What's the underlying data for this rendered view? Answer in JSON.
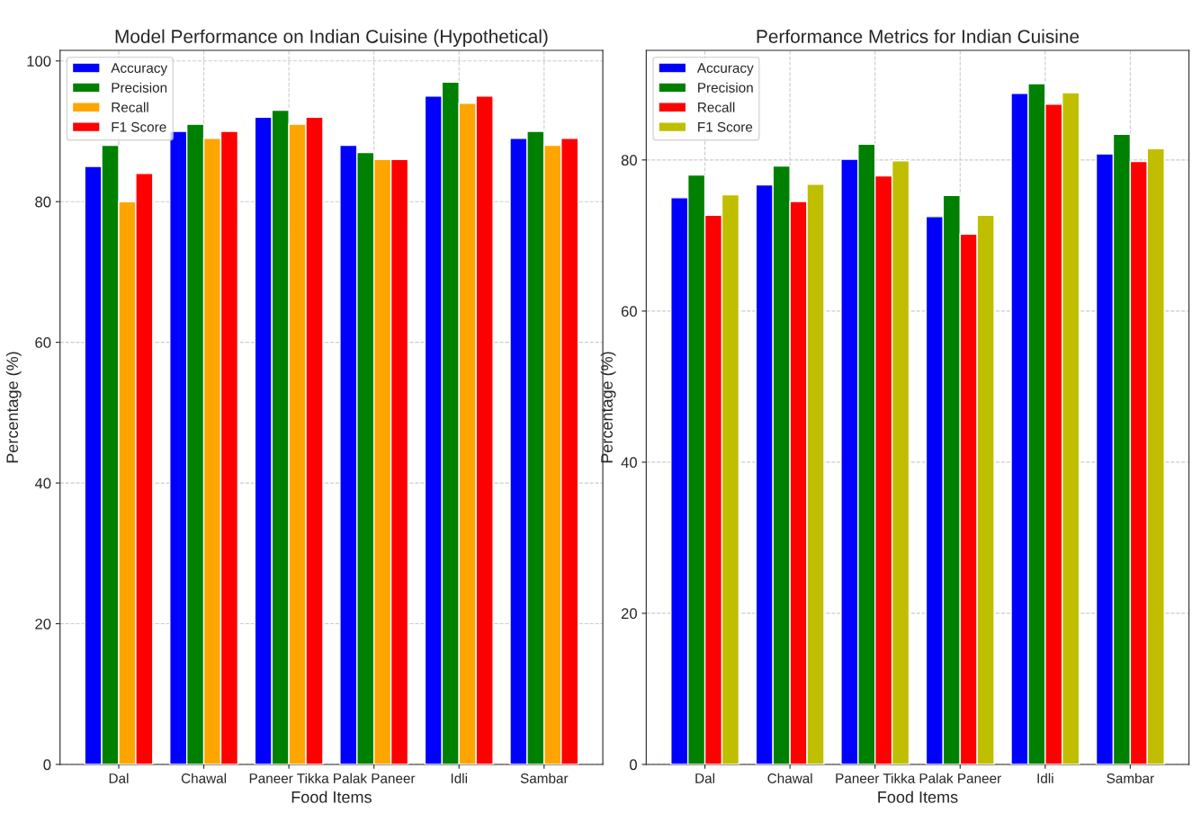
{
  "chart_data": [
    {
      "type": "bar",
      "title": "Model Performance on Indian Cuisine (Hypothetical)",
      "xlabel": "Food Items",
      "ylabel": "Percentage (%)",
      "categories": [
        "Dal",
        "Chawal",
        "Paneer Tikka",
        "Palak Paneer",
        "Idli",
        "Sambar"
      ],
      "series": [
        {
          "name": "Accuracy",
          "color": "#0000ff",
          "values": [
            85,
            90,
            92,
            88,
            95,
            89
          ]
        },
        {
          "name": "Precision",
          "color": "#008000",
          "values": [
            88,
            91,
            93,
            87,
            97,
            90
          ]
        },
        {
          "name": "Recall",
          "color": "#ffa500",
          "values": [
            80,
            89,
            91,
            86,
            94,
            88
          ]
        },
        {
          "name": "F1 Score",
          "color": "#ff0000",
          "values": [
            84,
            90,
            92,
            86,
            95,
            89
          ]
        }
      ],
      "ylim": [
        0,
        101.5
      ],
      "yticks": [
        0,
        20,
        40,
        60,
        80,
        100
      ],
      "grid": true,
      "legend": "top left"
    },
    {
      "type": "bar",
      "title": "Performance Metrics for Indian Cuisine",
      "xlabel": "Food Items",
      "ylabel": "Percentage (%)",
      "categories": [
        "Dal",
        "Chawal",
        "Paneer Tikka",
        "Palak Paneer",
        "Idli",
        "Sambar"
      ],
      "series": [
        {
          "name": "Accuracy",
          "color": "#0000ff",
          "values": [
            75,
            76.7,
            80.1,
            72.5,
            88.8,
            80.8
          ]
        },
        {
          "name": "Precision",
          "color": "#008000",
          "values": [
            78,
            79.2,
            82.1,
            75.3,
            90.1,
            83.4
          ]
        },
        {
          "name": "Recall",
          "color": "#ff0000",
          "values": [
            72.7,
            74.5,
            77.9,
            70.2,
            87.4,
            79.8
          ]
        },
        {
          "name": "F1 Score",
          "color": "#bfbf00",
          "values": [
            75.4,
            76.8,
            79.9,
            72.7,
            88.9,
            81.5
          ]
        }
      ],
      "ylim": [
        0,
        94.5
      ],
      "yticks": [
        0,
        20,
        40,
        60,
        80
      ],
      "grid": true,
      "legend": "top left"
    }
  ]
}
